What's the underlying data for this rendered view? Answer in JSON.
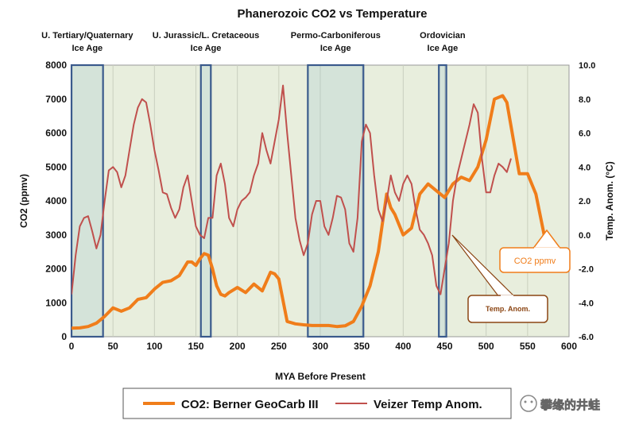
{
  "chart_data": {
    "type": "line",
    "title": "Phanerozoic CO2 vs Temperature",
    "xlabel": "MYA Before Present",
    "ylabel_left": "CO2 (ppmv)",
    "ylabel_right": "Temp. Anom. (°C)",
    "xlim": [
      0,
      600
    ],
    "ylim_left": [
      0,
      8000
    ],
    "ylim_right": [
      -6,
      10
    ],
    "x_ticks": [
      "0",
      "50",
      "100",
      "150",
      "200",
      "250",
      "300",
      "350",
      "400",
      "450",
      "500",
      "550",
      "600"
    ],
    "y_left_ticks": [
      "0",
      "1000",
      "2000",
      "3000",
      "4000",
      "5000",
      "6000",
      "7000",
      "8000"
    ],
    "y_right_ticks": [
      "-6.0",
      "-4.0",
      "-2.0",
      "0.0",
      "2.0",
      "4.0",
      "6.0",
      "8.0",
      "10.0"
    ],
    "grid": "vertical",
    "plot_background": "#e8eedd",
    "ice_ages": [
      {
        "label_line1": "U. Tertiary/Quaternary",
        "label_line2": "Ice Age",
        "x_start": 0,
        "x_end": 38
      },
      {
        "label_line1": "U. Jurassic/L. Cretaceous",
        "label_line2": "Ice Age",
        "x_start": 156,
        "x_end": 168
      },
      {
        "label_line1": "Permo-Carboniferous",
        "label_line2": "Ice Age",
        "x_start": 285,
        "x_end": 352
      },
      {
        "label_line1": "Ordovician",
        "label_line2": "Ice Age",
        "x_start": 443,
        "x_end": 452
      }
    ],
    "series": [
      {
        "name": "CO2: Berner GeoCarb III",
        "axis": "left",
        "color": "#f07d1a",
        "x": [
          0,
          10,
          20,
          30,
          40,
          50,
          60,
          70,
          80,
          90,
          100,
          110,
          120,
          130,
          140,
          145,
          150,
          155,
          160,
          165,
          170,
          175,
          180,
          185,
          190,
          200,
          210,
          220,
          230,
          240,
          245,
          250,
          260,
          270,
          280,
          290,
          300,
          310,
          320,
          330,
          340,
          350,
          360,
          370,
          380,
          385,
          390,
          400,
          410,
          420,
          430,
          440,
          450,
          460,
          470,
          480,
          490,
          500,
          510,
          520,
          525,
          530,
          540,
          550,
          560,
          570
        ],
        "y": [
          250,
          260,
          300,
          400,
          600,
          850,
          750,
          850,
          1100,
          1150,
          1400,
          1600,
          1650,
          1800,
          2200,
          2200,
          2100,
          2300,
          2450,
          2400,
          2000,
          1500,
          1250,
          1200,
          1300,
          1450,
          1300,
          1550,
          1350,
          1900,
          1850,
          1700,
          450,
          380,
          350,
          330,
          330,
          330,
          300,
          320,
          450,
          900,
          1500,
          2500,
          4200,
          3800,
          3600,
          3000,
          3200,
          4200,
          4500,
          4300,
          4100,
          4500,
          4700,
          4600,
          5000,
          5800,
          7000,
          7100,
          6900,
          6200,
          4800,
          4800,
          4200,
          3000
        ]
      },
      {
        "name": "Veizer Temp Anom.",
        "axis": "right",
        "color": "#c0504d",
        "x": [
          0,
          5,
          10,
          15,
          20,
          25,
          30,
          35,
          40,
          45,
          50,
          55,
          60,
          65,
          70,
          75,
          80,
          85,
          90,
          95,
          100,
          105,
          110,
          115,
          120,
          125,
          130,
          135,
          140,
          145,
          150,
          155,
          160,
          165,
          170,
          175,
          180,
          185,
          190,
          195,
          200,
          205,
          210,
          215,
          220,
          225,
          230,
          235,
          240,
          245,
          250,
          255,
          260,
          265,
          270,
          275,
          280,
          285,
          290,
          295,
          300,
          305,
          310,
          315,
          320,
          325,
          330,
          335,
          340,
          345,
          350,
          355,
          360,
          365,
          370,
          375,
          380,
          385,
          390,
          395,
          400,
          405,
          410,
          415,
          420,
          425,
          430,
          435,
          440,
          445,
          450,
          455,
          460,
          465,
          470,
          475,
          480,
          485,
          490,
          495,
          500,
          505,
          510,
          515,
          520,
          525,
          530
        ],
        "y": [
          -3.5,
          -1.2,
          0.5,
          1.0,
          1.1,
          0.2,
          -0.8,
          0.0,
          2.0,
          3.8,
          4.0,
          3.7,
          2.8,
          3.5,
          5.0,
          6.5,
          7.5,
          8.0,
          7.8,
          6.5,
          5.0,
          3.8,
          2.5,
          2.4,
          1.6,
          1.0,
          1.5,
          2.8,
          3.5,
          2.0,
          0.5,
          0.0,
          -0.2,
          1.0,
          1.0,
          3.5,
          4.2,
          3.0,
          1.0,
          0.5,
          1.5,
          2.0,
          2.2,
          2.5,
          3.5,
          4.2,
          6.0,
          5.0,
          4.2,
          5.5,
          6.8,
          8.8,
          6.0,
          3.5,
          1.0,
          -0.3,
          -1.2,
          -0.5,
          1.2,
          2.0,
          2.0,
          0.5,
          0.0,
          1.0,
          2.3,
          2.2,
          1.5,
          -0.5,
          -1.0,
          1.0,
          5.5,
          6.5,
          6.0,
          3.5,
          1.5,
          0.8,
          2.0,
          3.5,
          2.5,
          2.0,
          3.0,
          3.5,
          3.0,
          1.5,
          0.3,
          0.0,
          -0.5,
          -1.2,
          -3.0,
          -3.5,
          -2.0,
          -0.5,
          2.0,
          3.5,
          4.5,
          5.5,
          6.5,
          7.7,
          7.2,
          4.5,
          2.5,
          2.5,
          3.5,
          4.2,
          4.0,
          3.7,
          4.5
        ]
      }
    ],
    "legend": {
      "placement": "bottom",
      "entries": [
        "CO2: Berner GeoCarb III",
        "Veizer Temp Anom."
      ]
    },
    "annotations": [
      {
        "text": "CO2 ppmv",
        "color": "#f07d1a"
      },
      {
        "text": "Temp. Anom.",
        "color": "#8b4513"
      }
    ],
    "watermark": "攀缘的井蛙"
  }
}
